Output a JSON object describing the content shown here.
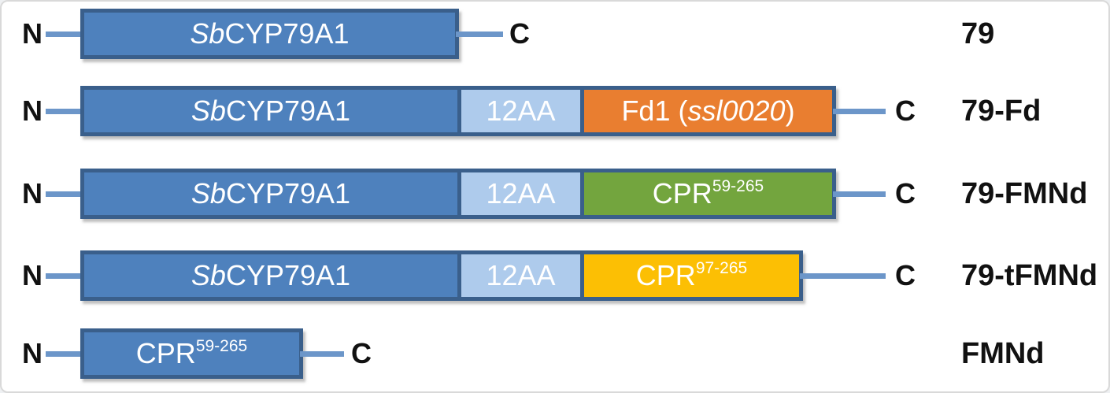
{
  "canvas": {
    "background": "#ffffff",
    "frame_border": "#d9d9d9"
  },
  "colors": {
    "main_blue": "#4e81bd",
    "border_navy": "#3a5f8b",
    "light_blue": "#aecbec",
    "orange": "#e97e30",
    "green": "#73a53e",
    "yellow": "#fcbf04",
    "line_blue": "#6c96c9",
    "domain_text": "#ffffff",
    "label_text": "#111111"
  },
  "terminals": {
    "n_label": "N",
    "c_label": "C"
  },
  "rows": [
    {
      "name": "79",
      "segments": [
        {
          "it": "Sb",
          "mid": "CYP79A1",
          "fill": "#4e81bd"
        }
      ]
    },
    {
      "name": "79-Fd",
      "segments": [
        {
          "it": "Sb",
          "mid": "CYP79A1",
          "fill": "#4e81bd"
        },
        {
          "mid": "12AA",
          "fill": "#aecbec"
        },
        {
          "pre": "Fd1 (",
          "it": "ssl0020",
          "post": ")",
          "fill": "#e97e30"
        }
      ]
    },
    {
      "name": "79-FMNd",
      "segments": [
        {
          "it": "Sb",
          "mid": "CYP79A1",
          "fill": "#4e81bd"
        },
        {
          "mid": "12AA",
          "fill": "#aecbec"
        },
        {
          "mid": "CPR",
          "sup": "59-265",
          "fill": "#73a53e"
        }
      ]
    },
    {
      "name": "79-tFMNd",
      "segments": [
        {
          "it": "Sb",
          "mid": "CYP79A1",
          "fill": "#4e81bd"
        },
        {
          "mid": "12AA",
          "fill": "#aecbec"
        },
        {
          "mid": "CPR",
          "sup": "97-265",
          "fill": "#fcbf04"
        }
      ]
    },
    {
      "name": "FMNd",
      "segments": [
        {
          "mid": "CPR",
          "sup": "59-265",
          "fill": "#4e81bd"
        }
      ]
    }
  ]
}
